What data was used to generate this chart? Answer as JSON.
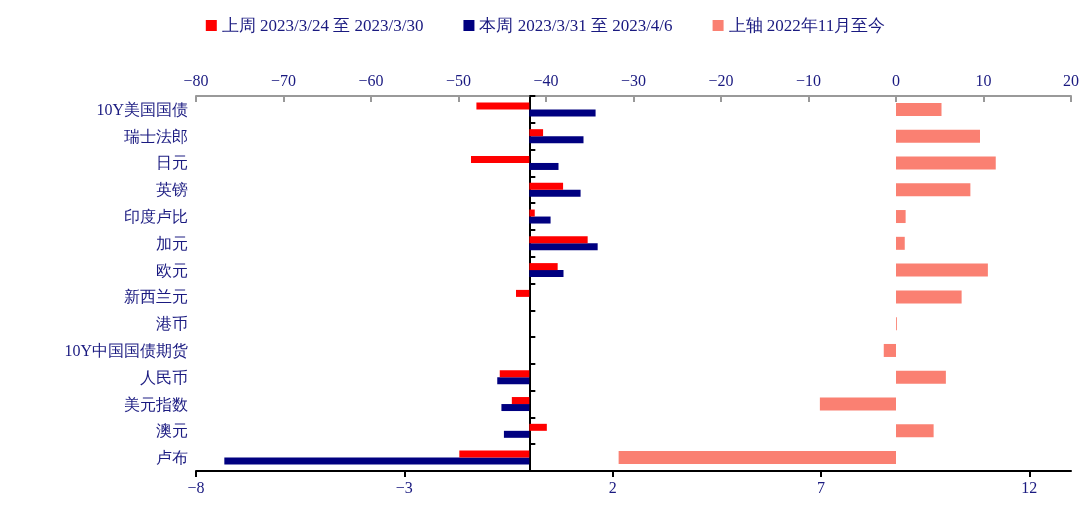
{
  "chart_data": {
    "type": "bar",
    "orientation": "horizontal",
    "categories": [
      "10Y美国国债",
      "瑞士法郎",
      "日元",
      "英镑",
      "印度卢比",
      "加元",
      "欧元",
      "新西兰元",
      "港币",
      "10Y中国国债期货",
      "人民币",
      "美元指数",
      "澳元",
      "卢布"
    ],
    "series": [
      {
        "name": "上周 2023/3/24 至 2023/3/30",
        "color": "#ff0000",
        "values": [
          -1.27,
          0.33,
          -1.4,
          0.81,
          0.13,
          1.4,
          0.68,
          -0.32,
          0,
          0,
          -0.71,
          -0.42,
          0.42,
          -1.68
        ]
      },
      {
        "name": "本周 2023/3/31 至 2023/4/6",
        "color": "#000080",
        "values": [
          1.59,
          1.3,
          0.7,
          1.23,
          0.51,
          1.64,
          0.82,
          0,
          0,
          0,
          -0.77,
          -0.67,
          -0.61,
          -7.32
        ]
      },
      {
        "name": "上轴 2022年11月至今",
        "color": "#fa8072",
        "axis": "x2",
        "values": [
          5.2,
          9.6,
          11.4,
          8.5,
          1.1,
          1.0,
          10.5,
          7.5,
          0.1,
          -1.4,
          5.7,
          -8.7,
          4.3,
          -31.7
        ]
      }
    ],
    "xlim": [
      -8,
      13
    ],
    "xticks": [
      -8,
      -3,
      2,
      7,
      12
    ],
    "x2lim": [
      -80,
      20
    ],
    "x2ticks": [
      -80,
      -70,
      -60,
      -50,
      -40,
      -30,
      -20,
      -10,
      0,
      10,
      20
    ],
    "legend": "top",
    "grid": false
  }
}
